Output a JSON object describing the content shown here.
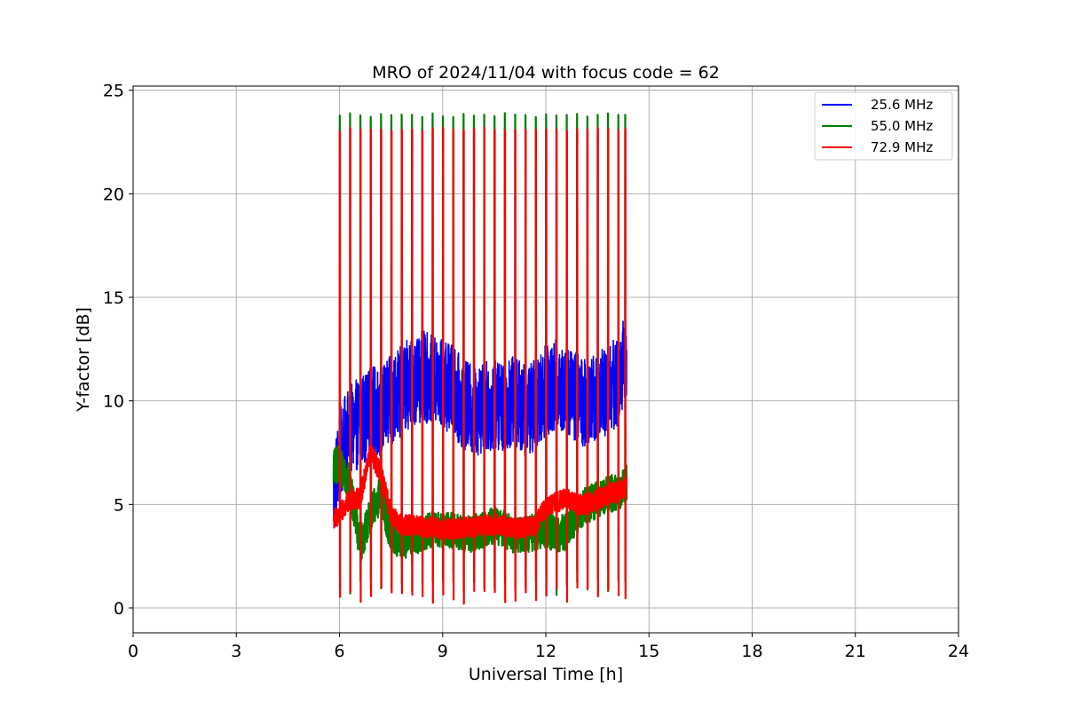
{
  "chart_data": {
    "type": "line",
    "title": "MRO of 2024/11/04 with focus code = 62",
    "xlabel": "Universal Time [h]",
    "ylabel": "Y-factor [dB]",
    "xlim": [
      0,
      24
    ],
    "ylim": [
      -1.2,
      25.2
    ],
    "xticks": [
      0,
      3,
      6,
      9,
      12,
      15,
      18,
      21,
      24
    ],
    "xtick_labels": [
      "0",
      "3",
      "6",
      "9",
      "12",
      "15",
      "18",
      "21",
      "24"
    ],
    "yticks": [
      0,
      5,
      10,
      15,
      20,
      25
    ],
    "ytick_labels": [
      "0",
      "5",
      "10",
      "15",
      "20",
      "25"
    ],
    "grid": true,
    "legend_position": "top-right",
    "x_start": 5.83,
    "x_end": 14.35,
    "spike_times": [
      6.0,
      6.3,
      6.6,
      6.9,
      7.2,
      7.5,
      7.8,
      8.1,
      8.4,
      8.7,
      9.0,
      9.3,
      9.6,
      9.9,
      10.2,
      10.5,
      10.8,
      11.1,
      11.4,
      11.7,
      12.0,
      12.3,
      12.6,
      12.9,
      13.2,
      13.5,
      13.8,
      14.1,
      14.3
    ],
    "series": [
      {
        "name": "25.6 MHz",
        "color": "#0000ff",
        "spike_high": 23.1,
        "dip_low": 1.3,
        "baseline": {
          "x": [
            5.85,
            6.0,
            6.3,
            6.6,
            6.9,
            7.2,
            7.5,
            7.8,
            8.1,
            8.4,
            8.7,
            9.0,
            9.3,
            9.6,
            9.9,
            10.2,
            10.5,
            10.8,
            11.1,
            11.4,
            11.7,
            12.0,
            12.3,
            12.6,
            12.9,
            13.2,
            13.5,
            13.8,
            14.1,
            14.35
          ],
          "y": [
            5.5,
            7.5,
            8.5,
            9.0,
            9.5,
            9.5,
            10.0,
            10.5,
            11.0,
            11.2,
            11.0,
            10.8,
            10.5,
            9.8,
            9.5,
            9.7,
            9.8,
            9.8,
            10.0,
            9.5,
            9.8,
            10.5,
            10.8,
            10.5,
            10.2,
            9.8,
            10.2,
            10.5,
            11.0,
            12.5
          ]
        },
        "noise": 2.2
      },
      {
        "name": "55.0 MHz",
        "color": "#008000",
        "spike_high": 23.8,
        "dip_low": 0.6,
        "baseline": {
          "x": [
            5.85,
            6.0,
            6.3,
            6.6,
            6.9,
            7.2,
            7.5,
            7.8,
            8.1,
            8.4,
            8.7,
            9.0,
            9.3,
            9.6,
            9.9,
            10.2,
            10.5,
            10.8,
            11.1,
            11.4,
            11.7,
            12.0,
            12.3,
            12.6,
            12.9,
            13.2,
            13.5,
            13.8,
            14.1,
            14.35
          ],
          "y": [
            6.8,
            7.0,
            6.0,
            3.0,
            4.5,
            5.5,
            3.5,
            3.2,
            3.4,
            3.6,
            3.8,
            3.7,
            3.8,
            3.5,
            3.6,
            3.8,
            4.0,
            3.8,
            3.5,
            3.5,
            3.7,
            3.8,
            3.6,
            3.7,
            4.5,
            5.0,
            5.2,
            5.5,
            5.6,
            6.0
          ]
        },
        "noise": 0.9
      },
      {
        "name": "72.9 MHz",
        "color": "#ff0000",
        "spike_high": 23.1,
        "dip_low": 0.2,
        "baseline": {
          "x": [
            5.85,
            6.0,
            6.3,
            6.6,
            6.9,
            7.2,
            7.5,
            7.8,
            8.1,
            8.4,
            8.7,
            9.0,
            9.3,
            9.6,
            9.9,
            10.2,
            10.5,
            10.8,
            11.1,
            11.4,
            11.7,
            12.0,
            12.3,
            12.6,
            12.9,
            13.2,
            13.5,
            13.8,
            14.1,
            14.35
          ],
          "y": [
            4.3,
            4.5,
            5.2,
            5.3,
            7.5,
            6.5,
            4.5,
            4.0,
            4.0,
            3.9,
            3.9,
            3.8,
            3.8,
            3.9,
            3.9,
            4.0,
            4.0,
            4.0,
            3.8,
            3.9,
            4.0,
            4.9,
            5.1,
            5.3,
            5.0,
            5.0,
            5.2,
            5.5,
            5.6,
            5.8
          ]
        },
        "noise": 0.5
      }
    ]
  }
}
